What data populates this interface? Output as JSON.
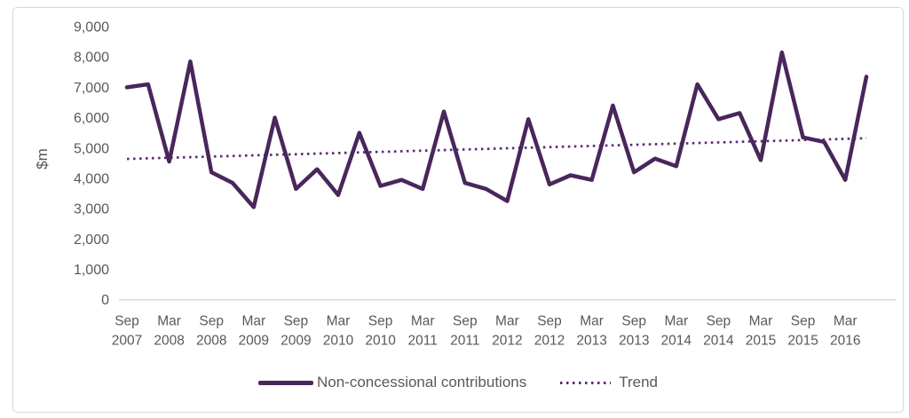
{
  "chart_data": {
    "type": "line",
    "ylabel": "$m",
    "ylim": [
      0,
      9000
    ],
    "ytick_step": 1000,
    "grid": false,
    "legend_position": "bottom",
    "x_label_every": 2,
    "categories": [
      "Sep 2007",
      "Dec 2007",
      "Mar 2008",
      "Jun 2008",
      "Sep 2008",
      "Dec 2008",
      "Mar 2009",
      "Jun 2009",
      "Sep 2009",
      "Dec 2009",
      "Mar 2010",
      "Jun 2010",
      "Sep 2010",
      "Dec 2010",
      "Mar 2011",
      "Jun 2011",
      "Sep 2011",
      "Dec 2011",
      "Mar 2012",
      "Jun 2012",
      "Sep 2012",
      "Dec 2012",
      "Mar 2013",
      "Jun 2013",
      "Sep 2013",
      "Dec 2013",
      "Mar 2014",
      "Jun 2014",
      "Sep 2014",
      "Dec 2014",
      "Mar 2015",
      "Jun 2015",
      "Sep 2015",
      "Dec 2015",
      "Mar 2016",
      "Jun 2016"
    ],
    "series": [
      {
        "name": "Non-concessional contributions",
        "style": "solid",
        "color": "#49265b",
        "values": [
          7000,
          7100,
          4550,
          7850,
          4200,
          3850,
          3050,
          6000,
          3650,
          4300,
          3450,
          5500,
          3750,
          3950,
          3650,
          6200,
          3850,
          3650,
          3250,
          5950,
          3800,
          4100,
          3950,
          6400,
          4200,
          4650,
          4400,
          7100,
          5950,
          6150,
          4600,
          8150,
          5350,
          5200,
          3950,
          7350
        ]
      },
      {
        "name": "Trend",
        "style": "dotted",
        "color": "#5e2c76",
        "trend_endpoints": [
          4640,
          5320
        ]
      }
    ],
    "y_tick_labels": [
      "0",
      "1,000",
      "2,000",
      "3,000",
      "4,000",
      "5,000",
      "6,000",
      "7,000",
      "8,000",
      "9,000"
    ]
  },
  "colors": {
    "axis_text": "#595959",
    "axis_line": "#d9d9d9",
    "card_border": "#d7d7d7",
    "background": "#ffffff"
  }
}
